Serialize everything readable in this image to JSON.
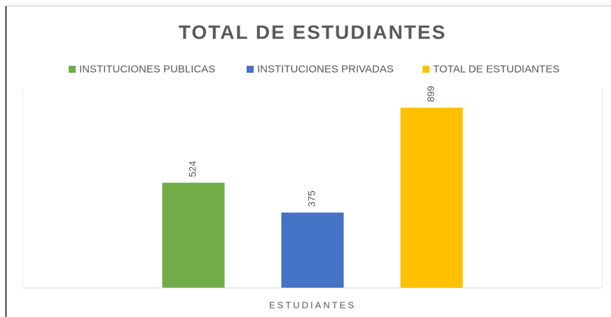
{
  "chart_data": {
    "type": "bar",
    "title": "TOTAL DE ESTUDIANTES",
    "categories": [
      "ESTUDIANTES"
    ],
    "series": [
      {
        "name": "INSTITUCIONES PUBLICAS",
        "color": "#70ad47",
        "values": [
          524
        ]
      },
      {
        "name": "INSTITUCIONES PRIVADAS",
        "color": "#4472c4",
        "values": [
          375
        ]
      },
      {
        "name": "TOTAL DE ESTUDIANTES",
        "color": "#ffc000",
        "values": [
          899
        ]
      }
    ],
    "ylim": [
      0,
      1000
    ],
    "legend": "top"
  }
}
